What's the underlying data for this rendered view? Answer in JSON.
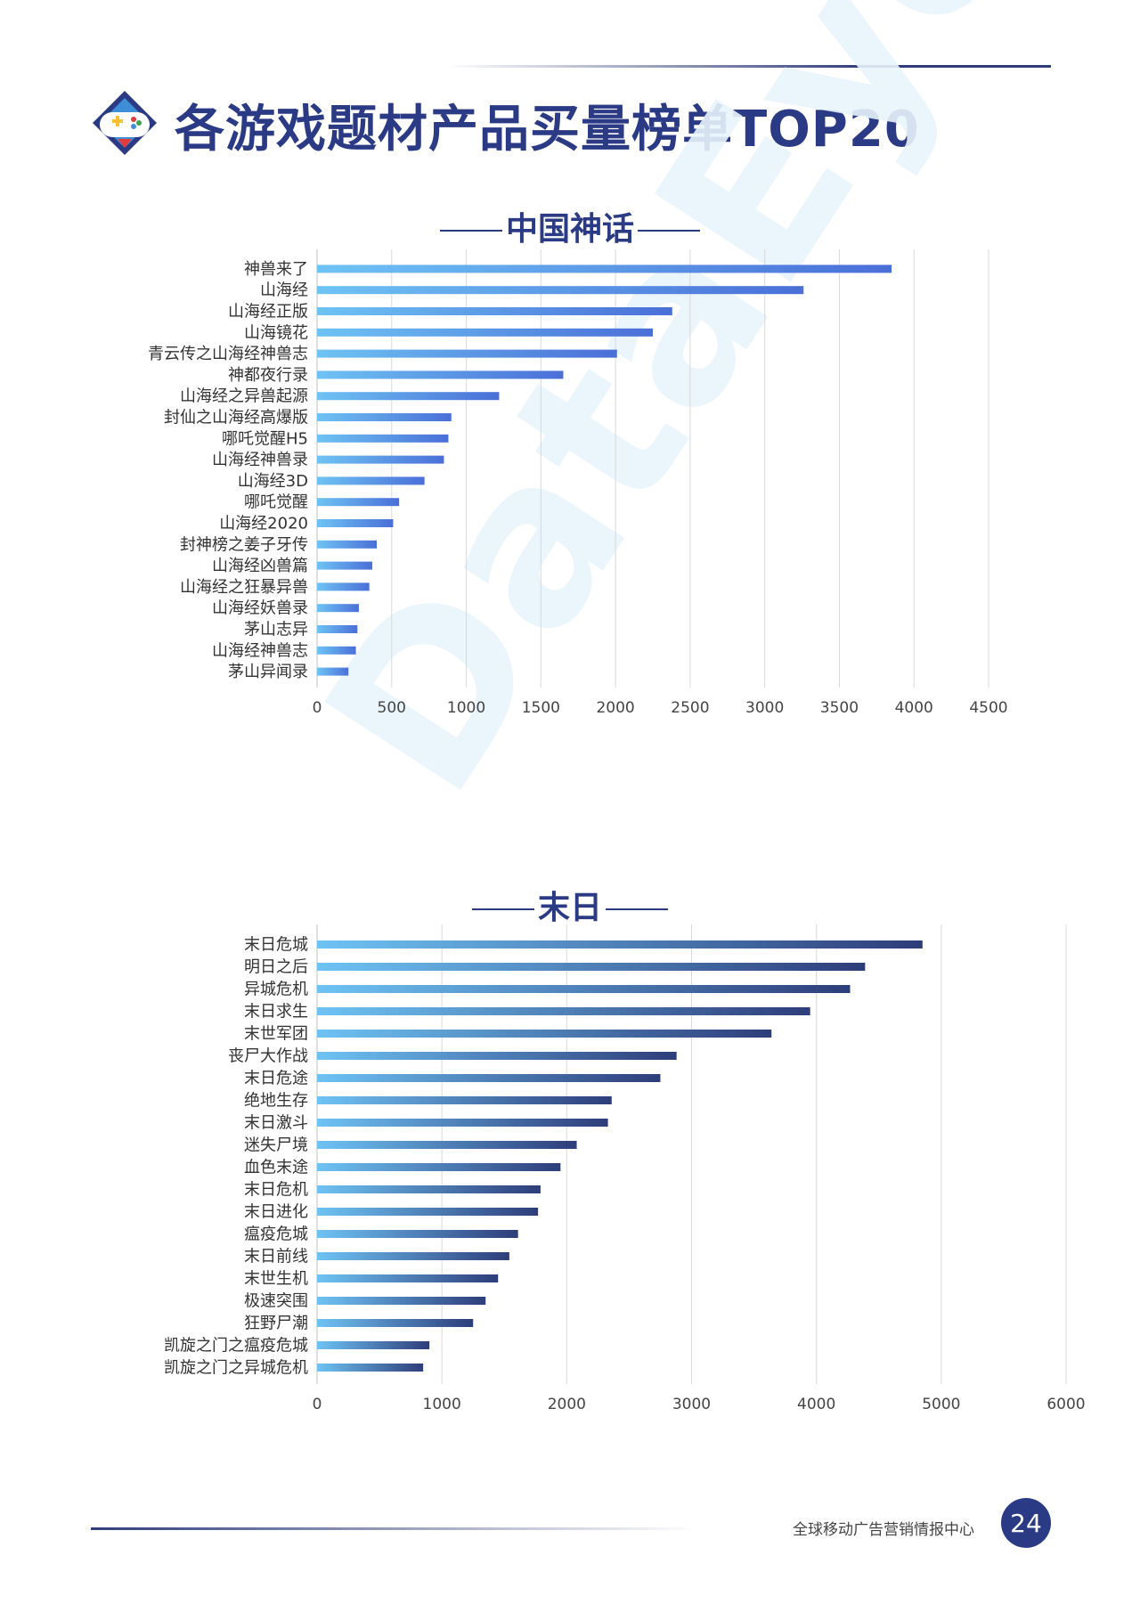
{
  "page_title": "各游戏题材产品买量榜单TOP20",
  "watermark": "DataEye",
  "footer": {
    "text": "全球移动广告营销情报中心",
    "page_number": "24"
  },
  "colors": {
    "title": "#2b3a85",
    "bar_light_start": "#6ec3f4",
    "bar_light_end": "#4a6fd8",
    "bar_dark_end": "#2e3d7a",
    "grid": "#d9d9d9"
  },
  "chart_data": [
    {
      "type": "bar",
      "orientation": "horizontal",
      "title": "中国神话",
      "categories": [
        "神兽来了",
        "山海经",
        "山海经正版",
        "山海镜花",
        "青云传之山海经神兽志",
        "神都夜行录",
        "山海经之异兽起源",
        "封仙之山海经高爆版",
        "哪吒觉醒H5",
        "山海经神兽录",
        "山海经3D",
        "哪吒觉醒",
        "山海经2020",
        "封神榜之姜子牙传",
        "山海经凶兽篇",
        "山海经之狂暴异兽",
        "山海经妖兽录",
        "茅山志异",
        "山海经神兽志",
        "茅山异闻录"
      ],
      "values": [
        3850,
        3260,
        2380,
        2250,
        2010,
        1650,
        1220,
        900,
        880,
        850,
        720,
        550,
        510,
        400,
        370,
        350,
        280,
        270,
        260,
        210
      ],
      "xlim": [
        0,
        4500
      ],
      "xticks": [
        0,
        500,
        1000,
        1500,
        2000,
        2500,
        3000,
        3500,
        4000,
        4500
      ],
      "grid": true,
      "legend": "none"
    },
    {
      "type": "bar",
      "orientation": "horizontal",
      "title": "末日",
      "categories": [
        "末日危城",
        "明日之后",
        "异城危机",
        "末日求生",
        "末世军团",
        "丧尸大作战",
        "末日危途",
        "绝地生存",
        "末日激斗",
        "迷失尸境",
        "血色末途",
        "末日危机",
        "末日进化",
        "瘟疫危城",
        "末日前线",
        "末世生机",
        "极速突围",
        "狂野尸潮",
        "凯旋之门之瘟疫危城",
        "凯旋之门之异城危机"
      ],
      "values": [
        4850,
        4390,
        4270,
        3950,
        3640,
        2880,
        2750,
        2360,
        2330,
        2080,
        1950,
        1790,
        1770,
        1610,
        1540,
        1450,
        1350,
        1250,
        900,
        850
      ],
      "xlim": [
        0,
        6000
      ],
      "xticks": [
        0,
        1000,
        2000,
        3000,
        4000,
        5000,
        6000
      ],
      "grid": true,
      "legend": "none"
    }
  ]
}
